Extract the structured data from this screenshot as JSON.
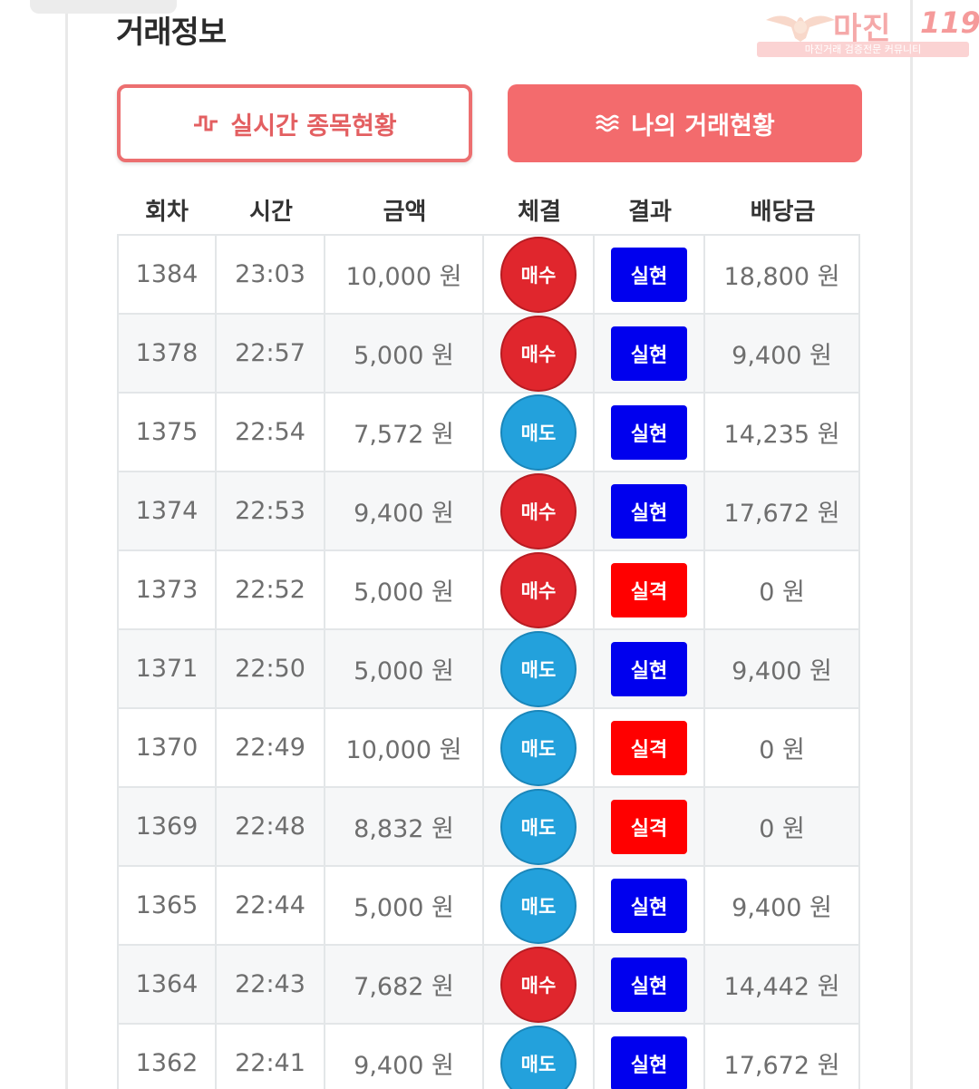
{
  "section_title": "거래정보",
  "watermark": {
    "name": "마진",
    "number": "119",
    "tagline": "마진거래 검증전문 커뮤니티"
  },
  "buttons": {
    "realtime_label": "실시간 종목현황",
    "mytrade_label": "나의 거래현황",
    "realtime_icon": "pulse-icon",
    "mytrade_icon": "waves-icon"
  },
  "table": {
    "headers": [
      "회차",
      "시간",
      "금액",
      "체결",
      "결과",
      "배당금"
    ],
    "rows": [
      {
        "round": "1384",
        "time": "23:03",
        "amount": "10,000 원",
        "trade": "매수",
        "result": "실현",
        "payout": "18,800 원"
      },
      {
        "round": "1378",
        "time": "22:57",
        "amount": "5,000 원",
        "trade": "매수",
        "result": "실현",
        "payout": "9,400 원"
      },
      {
        "round": "1375",
        "time": "22:54",
        "amount": "7,572 원",
        "trade": "매도",
        "result": "실현",
        "payout": "14,235 원"
      },
      {
        "round": "1374",
        "time": "22:53",
        "amount": "9,400 원",
        "trade": "매수",
        "result": "실현",
        "payout": "17,672 원"
      },
      {
        "round": "1373",
        "time": "22:52",
        "amount": "5,000 원",
        "trade": "매수",
        "result": "실격",
        "payout": "0 원"
      },
      {
        "round": "1371",
        "time": "22:50",
        "amount": "5,000 원",
        "trade": "매도",
        "result": "실현",
        "payout": "9,400 원"
      },
      {
        "round": "1370",
        "time": "22:49",
        "amount": "10,000 원",
        "trade": "매도",
        "result": "실격",
        "payout": "0 원"
      },
      {
        "round": "1369",
        "time": "22:48",
        "amount": "8,832 원",
        "trade": "매도",
        "result": "실격",
        "payout": "0 원"
      },
      {
        "round": "1365",
        "time": "22:44",
        "amount": "5,000 원",
        "trade": "매도",
        "result": "실현",
        "payout": "9,400 원"
      },
      {
        "round": "1364",
        "time": "22:43",
        "amount": "7,682 원",
        "trade": "매수",
        "result": "실현",
        "payout": "14,442 원"
      },
      {
        "round": "1362",
        "time": "22:41",
        "amount": "9,400 원",
        "trade": "매도",
        "result": "실현",
        "payout": "17,672 원"
      }
    ]
  },
  "colors": {
    "accent": "#f36b6d",
    "buy": "#e0262d",
    "sell": "#23a1dc",
    "win": "#0000ee",
    "lose": "#ff0000"
  }
}
